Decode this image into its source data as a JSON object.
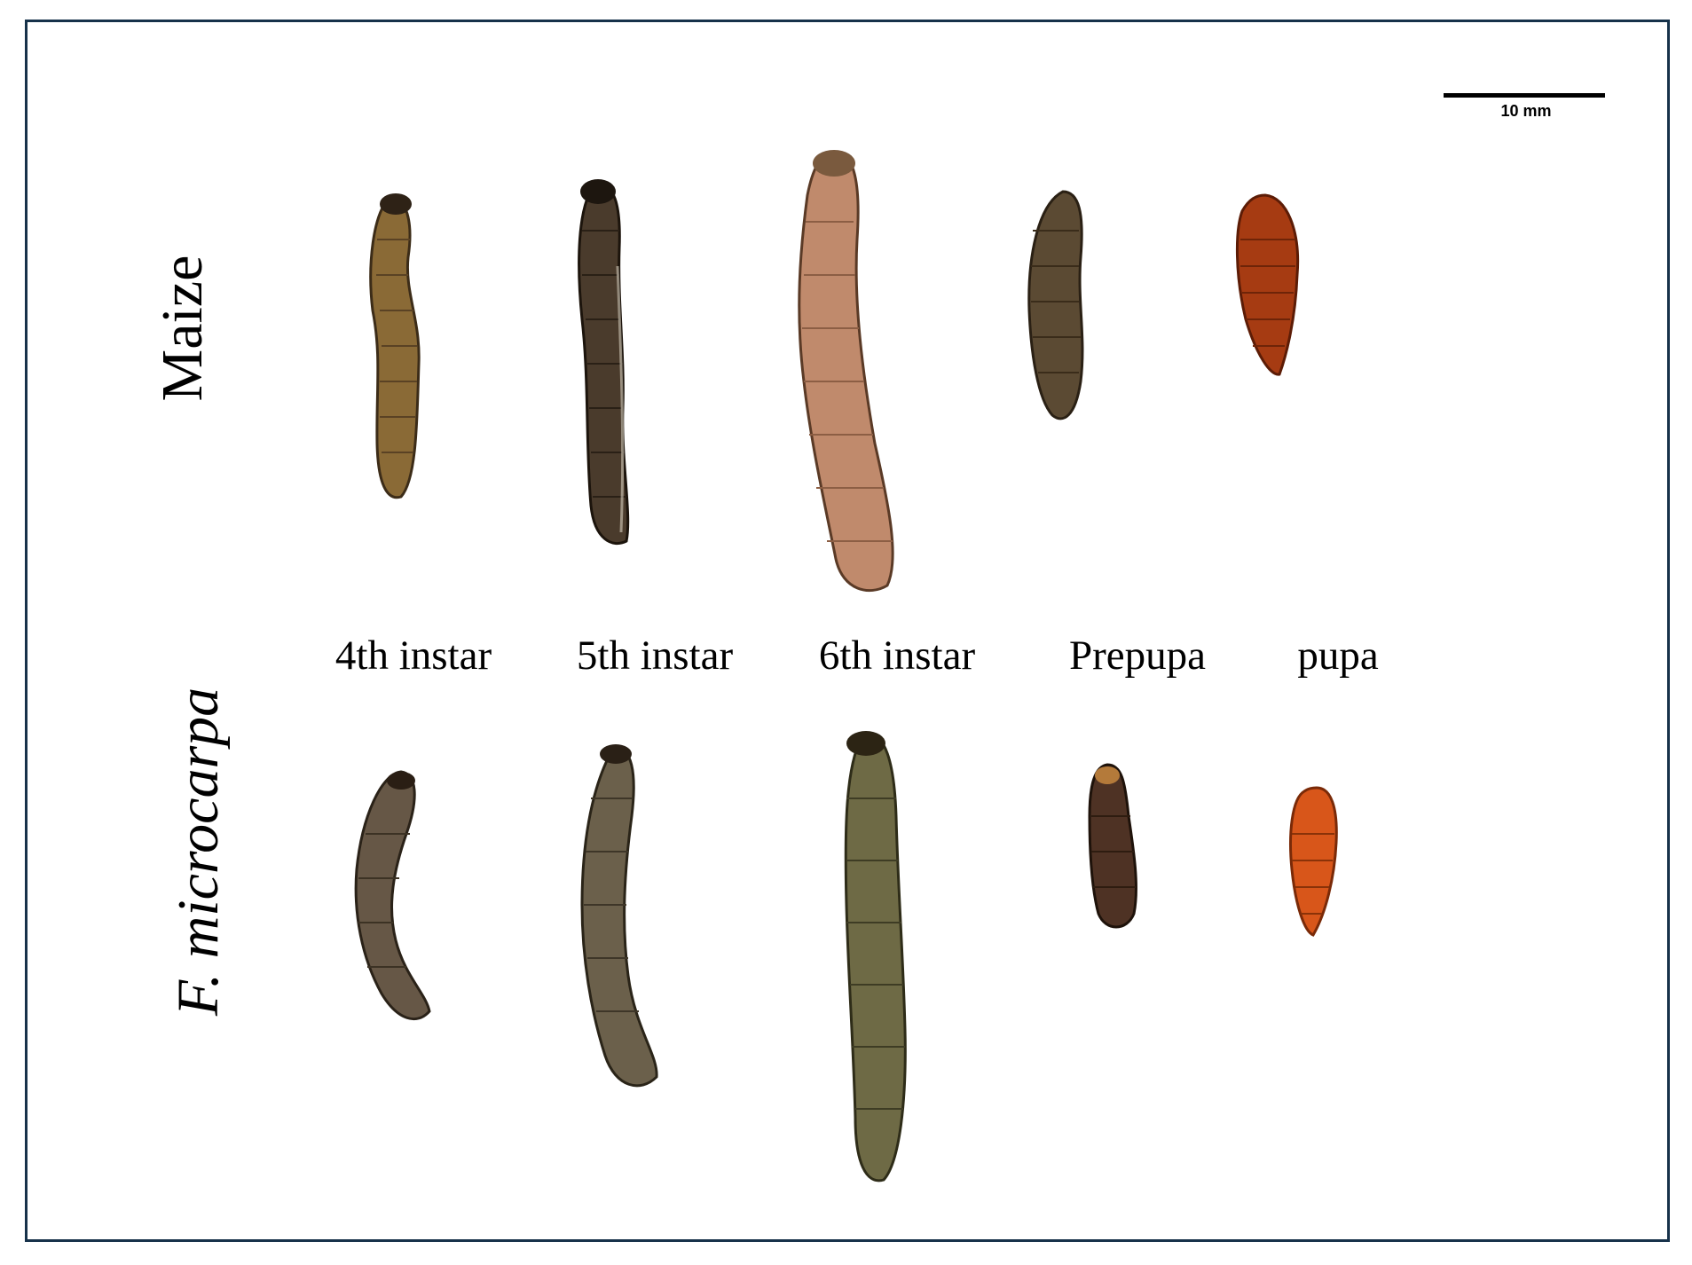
{
  "scale_bar": {
    "label": "10 mm"
  },
  "rows": {
    "maize": "Maize",
    "ficus": "F. microcarpa"
  },
  "stages": [
    "4th instar",
    "5th instar",
    "6th instar",
    "Prepupa",
    "pupa"
  ],
  "colors": {
    "frame": "#17324a",
    "maize_4th": "#8a6a36",
    "maize_5th": "#4a3b2c",
    "maize_6th": "#c08a6c",
    "maize_prepupa": "#5b4a33",
    "maize_pupa": "#a63b12",
    "ficus_4th": "#665746",
    "ficus_5th": "#6b604b",
    "ficus_6th": "#6e6a45",
    "ficus_prepupa": "#4e3224",
    "ficus_pupa": "#d8561a"
  }
}
